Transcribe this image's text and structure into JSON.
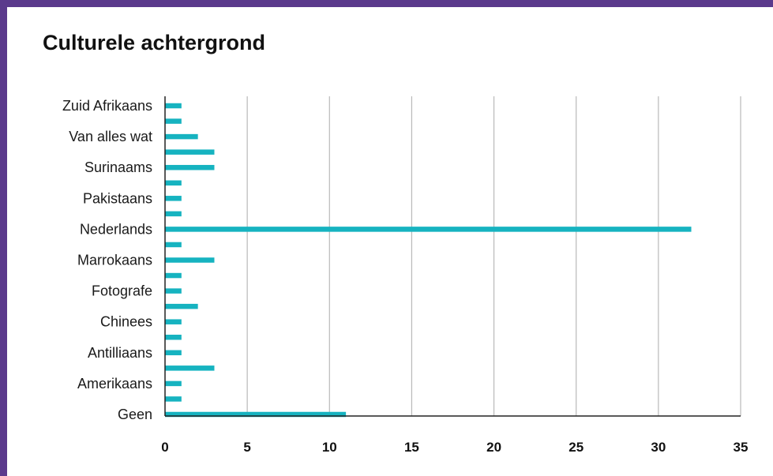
{
  "colors": {
    "bar": "#16b3c0",
    "grid": "#b9b9b9",
    "axis": "#222222",
    "frame": "#5b3a8c"
  },
  "chart_data": {
    "type": "bar",
    "orientation": "horizontal",
    "title": "Culturele achtergrond",
    "categories": [
      "Zuid Afrikaans",
      "",
      "Van alles wat",
      "",
      "Surinaams",
      "",
      "Pakistaans",
      "",
      "Nederlands",
      "",
      "Marrokaans",
      "",
      "Fotografe",
      "",
      "Chinees",
      "",
      "Antilliaans",
      "",
      "Amerikaans",
      "",
      "Geen"
    ],
    "values": [
      1,
      1,
      2,
      3,
      3,
      1,
      1,
      1,
      32,
      1,
      3,
      1,
      1,
      2,
      1,
      1,
      1,
      3,
      1,
      1,
      11
    ],
    "xlim": [
      0,
      35
    ],
    "xticks": [
      "0",
      "5",
      "10",
      "15",
      "20",
      "25",
      "30",
      "35"
    ],
    "grid": true
  }
}
